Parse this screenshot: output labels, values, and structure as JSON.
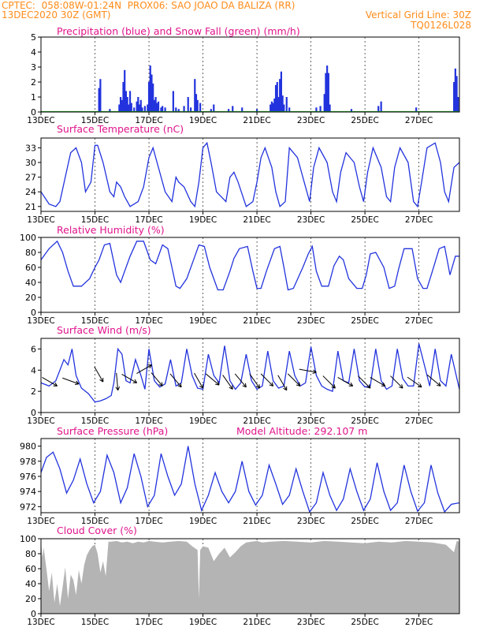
{
  "header": {
    "line1_left": "CPTEC:  058:08W-01:24N  PROX06: SAO JOAO DA BALIZA (RR)",
    "line2_left": "13DEC2020 30Z (GMT)",
    "line2_right": "Vertical Grid Line: 30Z",
    "line3_right": "TQ0126L028"
  },
  "colors": {
    "header": "#ff8c1a",
    "title": "#e0148c",
    "line": "#2233dd",
    "snow": "#22aa22",
    "cloud": "#b4b4b4"
  },
  "x_ticks": [
    "13DEC",
    "15DEC",
    "17DEC",
    "19DEC",
    "21DEC",
    "23DEC",
    "25DEC",
    "27DEC"
  ],
  "x_tick_days": [
    0,
    2,
    4,
    6,
    8,
    10,
    12,
    14
  ],
  "x_range_days": [
    0,
    15.5
  ],
  "chart_data": [
    {
      "id": "precip",
      "type": "bar",
      "title": "Precipitation (blue) and Snow Fall (green) (mm/h)",
      "ylim": [
        0,
        5
      ],
      "yticks": [
        0,
        1,
        2,
        3,
        4,
        5
      ],
      "x_unit": "days since 13DEC 30Z (model steps)",
      "x": [
        2.15,
        2.2,
        2.55,
        2.9,
        2.95,
        3.0,
        3.05,
        3.1,
        3.15,
        3.2,
        3.25,
        3.3,
        3.35,
        3.45,
        3.55,
        3.6,
        3.65,
        3.7,
        3.75,
        3.85,
        3.95,
        4.0,
        4.05,
        4.1,
        4.15,
        4.2,
        4.25,
        4.3,
        4.35,
        4.45,
        4.5,
        4.6,
        4.9,
        5.0,
        5.1,
        5.3,
        5.45,
        5.55,
        5.7,
        5.75,
        5.8,
        5.9,
        6.3,
        6.4,
        6.95,
        7.1,
        7.45,
        8.0,
        8.5,
        8.55,
        8.6,
        8.65,
        8.7,
        8.75,
        8.8,
        8.85,
        8.9,
        8.95,
        9.0,
        9.1,
        9.2,
        10.2,
        10.35,
        10.5,
        10.55,
        10.6,
        10.65,
        10.7,
        11.5,
        12.5,
        12.6,
        13.9,
        15.3,
        15.35,
        15.4,
        15.45
      ],
      "values": [
        1.6,
        2.2,
        0.2,
        0.5,
        1.0,
        0.8,
        2.0,
        2.8,
        1.4,
        1.0,
        0.5,
        1.4,
        0.6,
        0.3,
        0.7,
        1.0,
        0.5,
        0.8,
        0.3,
        0.4,
        0.5,
        2.0,
        3.1,
        2.5,
        1.9,
        0.8,
        1.0,
        0.6,
        0.7,
        0.3,
        0.4,
        0.3,
        1.4,
        0.3,
        0.2,
        0.4,
        1.0,
        0.3,
        2.2,
        1.2,
        0.8,
        0.6,
        0.2,
        0.5,
        0.2,
        0.4,
        0.3,
        0.2,
        0.5,
        0.7,
        0.6,
        0.9,
        1.8,
        2.0,
        1.0,
        2.2,
        2.7,
        1.1,
        0.5,
        1.0,
        0.3,
        0.3,
        0.4,
        1.2,
        2.6,
        3.1,
        2.6,
        0.5,
        0.2,
        0.4,
        0.7,
        0.3,
        2.0,
        2.9,
        2.4,
        1.0
      ],
      "snow_values": "all zero"
    },
    {
      "id": "temp",
      "type": "line",
      "title": "Surface Temperature (nC)",
      "ylim": [
        20,
        35
      ],
      "yticks": [
        21,
        24,
        27,
        30,
        33
      ],
      "x": [
        0,
        0.3,
        0.55,
        0.7,
        0.9,
        1.1,
        1.3,
        1.5,
        1.65,
        1.85,
        2.0,
        2.1,
        2.3,
        2.55,
        2.7,
        2.8,
        2.95,
        3.1,
        3.3,
        3.6,
        3.8,
        4.0,
        4.15,
        4.3,
        4.6,
        4.85,
        5.0,
        5.1,
        5.3,
        5.55,
        5.7,
        5.85,
        6.0,
        6.15,
        6.3,
        6.5,
        6.85,
        7.0,
        7.15,
        7.3,
        7.6,
        7.85,
        8.0,
        8.15,
        8.3,
        8.55,
        8.7,
        8.85,
        9.05,
        9.2,
        9.5,
        9.75,
        9.95,
        10.1,
        10.3,
        10.6,
        10.8,
        10.95,
        11.1,
        11.3,
        11.6,
        11.8,
        11.95,
        12.1,
        12.3,
        12.6,
        12.8,
        12.95,
        13.1,
        13.3,
        13.6,
        13.8,
        13.95,
        14.1,
        14.3,
        14.6,
        14.8,
        14.95,
        15.1,
        15.3,
        15.5
      ],
      "values": [
        24,
        21.5,
        21.0,
        22,
        27,
        32,
        33,
        30,
        24,
        26,
        33.5,
        33.5,
        30,
        24,
        23,
        26,
        25,
        23,
        21,
        22,
        25,
        31,
        33,
        30,
        24,
        22,
        27,
        26,
        25,
        22,
        21,
        26,
        33,
        34,
        30,
        24,
        22,
        27,
        28,
        26,
        21,
        22,
        26,
        31,
        33,
        29,
        24,
        21,
        22,
        33,
        31,
        26,
        22,
        29,
        33,
        30,
        24,
        22,
        28,
        32,
        30,
        25,
        22,
        28,
        33,
        29,
        23,
        22,
        29,
        33,
        30,
        22,
        21,
        26,
        33,
        34,
        30,
        24,
        22,
        29,
        30
      ]
    },
    {
      "id": "rh",
      "type": "line",
      "title": "Relative Humidity (%)",
      "ylim": [
        0,
        100
      ],
      "yticks": [
        0,
        20,
        40,
        60,
        80,
        100
      ],
      "x": [
        0,
        0.3,
        0.6,
        0.8,
        1.0,
        1.2,
        1.5,
        1.8,
        2.0,
        2.15,
        2.35,
        2.55,
        2.8,
        2.95,
        3.1,
        3.3,
        3.55,
        3.8,
        4.05,
        4.25,
        4.5,
        4.7,
        4.85,
        5.0,
        5.15,
        5.4,
        5.7,
        5.85,
        6.05,
        6.25,
        6.55,
        6.75,
        7.0,
        7.15,
        7.35,
        7.65,
        7.85,
        8.0,
        8.15,
        8.35,
        8.65,
        8.85,
        9.0,
        9.15,
        9.35,
        9.7,
        9.9,
        10.05,
        10.2,
        10.4,
        10.65,
        10.85,
        11.05,
        11.2,
        11.4,
        11.7,
        11.9,
        12.05,
        12.2,
        12.4,
        12.7,
        12.9,
        13.1,
        13.25,
        13.45,
        13.75,
        13.95,
        14.15,
        14.3,
        14.5,
        14.75,
        14.95,
        15.15,
        15.35,
        15.5
      ],
      "values": [
        70,
        85,
        95,
        80,
        55,
        35,
        35,
        45,
        60,
        70,
        90,
        92,
        50,
        40,
        55,
        75,
        95,
        95,
        70,
        65,
        90,
        85,
        60,
        35,
        32,
        45,
        75,
        90,
        88,
        60,
        30,
        30,
        55,
        72,
        85,
        88,
        55,
        32,
        32,
        55,
        85,
        88,
        60,
        30,
        32,
        60,
        78,
        88,
        55,
        35,
        35,
        62,
        75,
        70,
        45,
        32,
        32,
        50,
        78,
        80,
        60,
        32,
        35,
        58,
        85,
        85,
        45,
        32,
        32,
        55,
        85,
        88,
        50,
        75,
        75
      ]
    },
    {
      "id": "wind",
      "type": "line",
      "title": "Surface Wind (m/s)",
      "ylim": [
        0,
        7
      ],
      "yticks": [
        0,
        2,
        4,
        6
      ],
      "x": [
        0,
        0.3,
        0.55,
        0.7,
        0.85,
        1.0,
        1.15,
        1.3,
        1.5,
        1.75,
        2.0,
        2.2,
        2.4,
        2.6,
        2.7,
        2.85,
        3.0,
        3.15,
        3.3,
        3.5,
        3.7,
        3.85,
        4.0,
        4.2,
        4.4,
        4.6,
        4.8,
        5.0,
        5.2,
        5.4,
        5.6,
        5.8,
        6.0,
        6.2,
        6.4,
        6.6,
        6.8,
        7.0,
        7.2,
        7.4,
        7.6,
        7.8,
        8.0,
        8.2,
        8.4,
        8.6,
        8.8,
        9.0,
        9.2,
        9.4,
        9.6,
        9.8,
        10.0,
        10.2,
        10.4,
        10.6,
        10.8,
        11.0,
        11.2,
        11.4,
        11.6,
        11.8,
        12.0,
        12.2,
        12.4,
        12.6,
        12.8,
        13.0,
        13.2,
        13.4,
        13.6,
        13.8,
        14.0,
        14.2,
        14.4,
        14.6,
        14.8,
        15.0,
        15.2,
        15.5
      ],
      "values": [
        2.8,
        2.5,
        3.0,
        4.0,
        5.0,
        4.5,
        6.0,
        3.5,
        2.3,
        1.8,
        1.0,
        1.1,
        1.3,
        1.6,
        2.8,
        6.0,
        5.5,
        3.0,
        2.8,
        5.0,
        3.5,
        2.2,
        6.0,
        3.0,
        2.4,
        2.7,
        5.0,
        2.5,
        2.8,
        6.0,
        3.5,
        2.3,
        2.2,
        5.5,
        3.5,
        2.8,
        6.3,
        3.0,
        2.2,
        2.8,
        5.5,
        3.0,
        2.2,
        2.5,
        5.8,
        3.0,
        2.3,
        2.5,
        5.8,
        3.5,
        2.5,
        2.8,
        6.2,
        3.5,
        2.5,
        2.2,
        2.0,
        5.8,
        3.0,
        2.8,
        6.0,
        3.0,
        2.4,
        2.5,
        6.0,
        3.0,
        2.2,
        2.5,
        6.0,
        3.2,
        2.5,
        2.5,
        6.5,
        4.5,
        2.5,
        6.0,
        3.0,
        2.5,
        5.5,
        2.2
      ],
      "arrows": {
        "x": [
          0.6,
          1.4,
          2.3,
          2.85,
          3.55,
          4.1,
          4.5,
          5.2,
          6.0,
          6.6,
          7.1,
          7.6,
          8.1,
          8.6,
          9.1,
          9.6,
          10.2,
          10.9,
          11.55,
          12.2,
          12.75,
          13.4,
          14.1,
          14.8
        ],
        "y": [
          2.5,
          2.7,
          2.9,
          2.1,
          2.8,
          4.5,
          2.5,
          2.4,
          2.3,
          2.6,
          2.2,
          2.4,
          2.3,
          2.5,
          2.1,
          2.5,
          3.8,
          2.3,
          2.5,
          2.3,
          2.5,
          2.3,
          2.4,
          2.5
        ],
        "dir_deg": [
          150,
          160,
          120,
          95,
          150,
          210,
          130,
          130,
          120,
          140,
          125,
          130,
          125,
          135,
          120,
          135,
          170,
          135,
          150,
          135,
          150,
          135,
          145,
          140
        ]
      }
    },
    {
      "id": "pressure",
      "type": "line",
      "title": "Surface Pressure (hPa)",
      "annotation": "Model Altitude: 292.107 m",
      "ylim": [
        971.2,
        981
      ],
      "yticks": [
        972,
        974,
        976,
        978,
        980
      ],
      "x": [
        0,
        0.2,
        0.45,
        0.7,
        0.95,
        1.2,
        1.45,
        1.7,
        1.95,
        2.2,
        2.45,
        2.7,
        2.95,
        3.2,
        3.45,
        3.7,
        3.95,
        4.2,
        4.45,
        4.7,
        4.95,
        5.2,
        5.45,
        5.7,
        5.95,
        6.2,
        6.45,
        6.7,
        6.95,
        7.2,
        7.45,
        7.7,
        7.95,
        8.2,
        8.45,
        8.7,
        8.95,
        9.2,
        9.45,
        9.7,
        9.95,
        10.2,
        10.45,
        10.7,
        10.95,
        11.2,
        11.45,
        11.7,
        11.95,
        12.2,
        12.45,
        12.7,
        12.95,
        13.2,
        13.45,
        13.7,
        13.95,
        14.2,
        14.45,
        14.7,
        14.95,
        15.2,
        15.5
      ],
      "values": [
        976.5,
        978.5,
        979.2,
        977,
        973.8,
        975.5,
        978.3,
        975,
        972.5,
        974,
        978.8,
        976.5,
        972.5,
        974.5,
        979,
        976,
        972,
        973.5,
        979,
        976,
        973.5,
        975,
        980,
        975,
        971.5,
        973.5,
        976.5,
        974,
        972.5,
        974,
        978,
        974,
        972.2,
        973.5,
        977.5,
        975,
        972.3,
        973.5,
        977,
        974,
        971.3,
        972.5,
        976.5,
        973.5,
        971.5,
        973,
        977,
        974,
        971.5,
        973,
        977.8,
        974,
        971.5,
        972.5,
        977.5,
        974,
        971.4,
        972.5,
        977.5,
        973.8,
        971.3,
        972.3,
        972.5
      ]
    },
    {
      "id": "cloud",
      "type": "area",
      "title": "Cloud Cover (%)",
      "ylim": [
        0,
        100
      ],
      "yticks": [
        0,
        20,
        40,
        60,
        80,
        100
      ],
      "x": [
        0,
        0.05,
        0.1,
        0.2,
        0.3,
        0.4,
        0.5,
        0.6,
        0.7,
        0.8,
        0.9,
        1.0,
        1.1,
        1.2,
        1.3,
        1.4,
        1.5,
        1.6,
        1.7,
        1.8,
        1.9,
        2.0,
        2.1,
        2.2,
        2.3,
        2.4,
        2.5,
        2.6,
        2.8,
        3.0,
        3.2,
        3.4,
        3.6,
        3.8,
        4.0,
        4.2,
        4.5,
        4.8,
        5.1,
        5.4,
        5.6,
        5.8,
        5.85,
        5.9,
        6.0,
        6.2,
        6.4,
        6.6,
        6.8,
        7.0,
        7.2,
        7.4,
        7.6,
        7.8,
        8.0,
        8.2,
        8.5,
        9.0,
        9.5,
        10.0,
        10.5,
        11.0,
        11.5,
        12.0,
        12.5,
        13.0,
        13.5,
        14.0,
        14.5,
        15.0,
        15.3,
        15.4,
        15.5
      ],
      "values": [
        97,
        75,
        88,
        60,
        30,
        55,
        15,
        40,
        10,
        35,
        62,
        20,
        52,
        45,
        25,
        58,
        40,
        65,
        78,
        85,
        90,
        92,
        80,
        55,
        70,
        50,
        96,
        96,
        97,
        95,
        96,
        94,
        96,
        95,
        97,
        96,
        95,
        96,
        97,
        96,
        90,
        85,
        20,
        85,
        90,
        88,
        70,
        80,
        88,
        75,
        82,
        90,
        95,
        96,
        97,
        95,
        96,
        97,
        96,
        95,
        97,
        96,
        95,
        94,
        96,
        95,
        97,
        96,
        95,
        92,
        82,
        97,
        96
      ]
    }
  ]
}
